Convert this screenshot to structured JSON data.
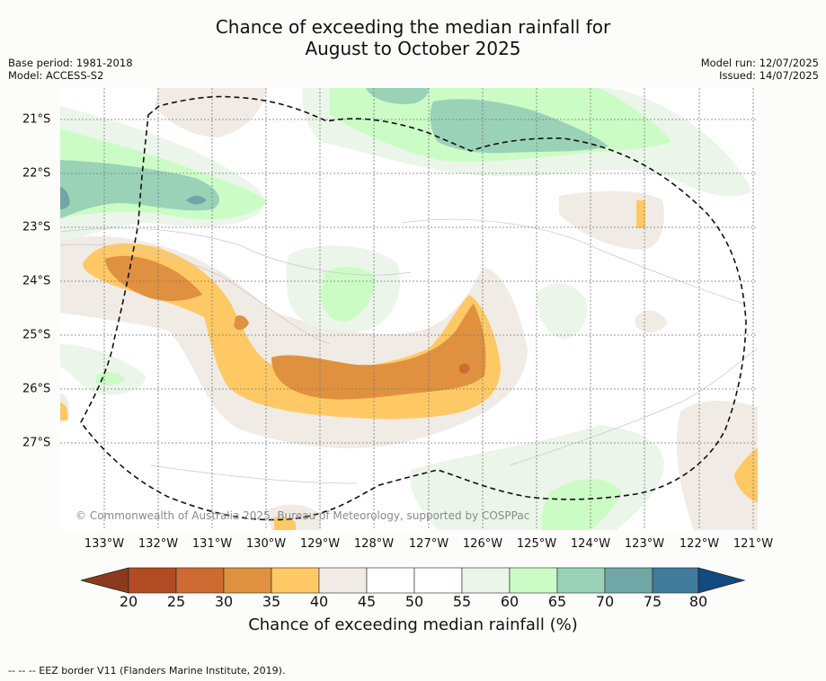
{
  "title": {
    "line1": "Chance of exceeding the median rainfall for",
    "line2": "August to October 2025"
  },
  "meta": {
    "base_period": "Base period: 1981-2018",
    "model": "Model: ACCESS-S2",
    "model_run": "Model run: 12/07/2025",
    "issued": "Issued: 14/07/2025"
  },
  "map": {
    "copyright": "© Commonwealth of Australia 2025, Bureau of Meteorology, supported by COSPPac",
    "lon_labels": [
      "133°W",
      "132°W",
      "131°W",
      "130°W",
      "129°W",
      "128°W",
      "127°W",
      "126°W",
      "125°W",
      "124°W",
      "123°W",
      "122°W",
      "121°W"
    ],
    "lat_labels": [
      "21°S",
      "22°S",
      "23°S",
      "24°S",
      "25°S",
      "26°S",
      "27°S"
    ],
    "background_color": "#ffffff",
    "eez_border_style": "dashed"
  },
  "colorbar": {
    "ticks": [
      "20",
      "25",
      "30",
      "35",
      "40",
      "45",
      "50",
      "55",
      "60",
      "65",
      "70",
      "75",
      "80"
    ],
    "colors": {
      "lt20": "#8b3a1e",
      "20-25": "#b24a24",
      "25-30": "#cf6a32",
      "30-35": "#e0913f",
      "35-40": "#fec965",
      "40-45": "#f0ebe5",
      "45-50": "#ffffff",
      "50-55": "#ffffff",
      "55-60": "#ebf5ea",
      "60-65": "#ccfcc6",
      "65-70": "#9ad2b8",
      "70-75": "#70a6a6",
      "75-80": "#417b9a",
      "gt80": "#124a82"
    },
    "label": "Chance of exceeding median rainfall (%)"
  },
  "footnote": "-- -- -- EEZ border V11 (Flanders Marine Institute, 2019)."
}
